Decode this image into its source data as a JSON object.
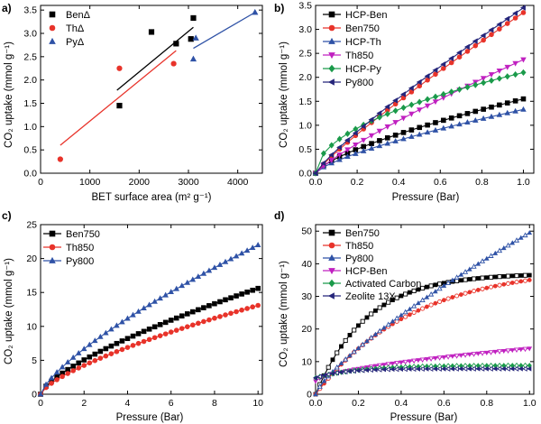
{
  "chart_data": [
    {
      "id": "a",
      "type": "scatter",
      "panel_label": "a)",
      "xlabel": "BET surface area (m² g⁻¹)",
      "ylabel": "CO₂ uptake (mmol g⁻¹)",
      "xlim": [
        0,
        4500
      ],
      "ylim": [
        0,
        3.6
      ],
      "xticks": [
        0,
        1000,
        2000,
        3000,
        4000
      ],
      "yticks": [
        0.0,
        0.5,
        1.0,
        1.5,
        2.0,
        2.5,
        3.0,
        3.5
      ],
      "xtick_labels": [
        "0",
        "1000",
        "2000",
        "3000",
        "4000"
      ],
      "ytick_labels": [
        "0.0",
        "0.5",
        "1.0",
        "1.5",
        "2.0",
        "2.5",
        "3.0",
        "3.5"
      ],
      "series": [
        {
          "name": "BenΔ",
          "color": "#000000",
          "marker": "square",
          "x": [
            1600,
            2250,
            2750,
            3050,
            3100
          ],
          "y": [
            1.45,
            3.03,
            2.78,
            2.88,
            3.33
          ],
          "fit": [
            [
              1550,
              1.78
            ],
            [
              3100,
              3.13
            ]
          ]
        },
        {
          "name": "ThΔ",
          "color": "#e8332a",
          "marker": "circle",
          "x": [
            400,
            1600,
            2700
          ],
          "y": [
            0.3,
            2.25,
            2.35
          ],
          "fit": [
            [
              400,
              0.6
            ],
            [
              2750,
              2.63
            ]
          ]
        },
        {
          "name": "PyΔ",
          "color": "#2f52a6",
          "marker": "triangle",
          "x": [
            3100,
            3150,
            4350
          ],
          "y": [
            2.45,
            2.9,
            3.45
          ],
          "fit": [
            [
              3100,
              2.68
            ],
            [
              4350,
              3.45
            ]
          ]
        }
      ]
    },
    {
      "id": "b",
      "type": "line",
      "panel_label": "b)",
      "xlabel": "Pressure (Bar)",
      "ylabel": "CO₂ uptake (mmol g⁻¹)",
      "xlim": [
        0,
        1.05
      ],
      "ylim": [
        0,
        3.5
      ],
      "xticks": [
        0,
        0.2,
        0.4,
        0.6,
        0.8,
        1.0
      ],
      "yticks": [
        0.0,
        0.5,
        1.0,
        1.5,
        2.0,
        2.5,
        3.0,
        3.5
      ],
      "xtick_labels": [
        "0.0",
        "0.2",
        "0.4",
        "0.6",
        "0.8",
        "1.0"
      ],
      "ytick_labels": [
        "0.0",
        "0.5",
        "1.0",
        "1.5",
        "2.0",
        "2.5",
        "3.0",
        "3.5"
      ],
      "series": [
        {
          "name": "HCP-Ben",
          "color": "#000000",
          "marker": "square",
          "y_end": 1.55,
          "exponent": 0.7
        },
        {
          "name": "Ben750",
          "color": "#e8332a",
          "marker": "circle",
          "y_end": 3.35,
          "exponent": 0.88
        },
        {
          "name": "HCP-Th",
          "color": "#2f52a6",
          "marker": "triangle",
          "y_end": 1.33,
          "exponent": 0.72
        },
        {
          "name": "Th850",
          "color": "#c020c0",
          "marker": "triangle-down",
          "y_end": 2.37,
          "exponent": 0.84
        },
        {
          "name": "HCP-Py",
          "color": "#1a9a4a",
          "marker": "diamond",
          "y_end": 2.1,
          "exponent": 0.5
        },
        {
          "name": "Py800",
          "color": "#25257a",
          "marker": "triangle-left",
          "y_end": 3.45,
          "exponent": 0.86
        }
      ]
    },
    {
      "id": "c",
      "type": "line",
      "panel_label": "c)",
      "xlabel": "Pressure (Bar)",
      "ylabel": "CO₂ uptake (mmol g⁻¹)",
      "xlim": [
        0,
        10.2
      ],
      "ylim": [
        0,
        25
      ],
      "xticks": [
        0,
        2,
        4,
        6,
        8,
        10
      ],
      "yticks": [
        0,
        5,
        10,
        15,
        20,
        25
      ],
      "xtick_labels": [
        "0",
        "2",
        "4",
        "6",
        "8",
        "10"
      ],
      "ytick_labels": [
        "0",
        "5",
        "10",
        "15",
        "20",
        "25"
      ],
      "series": [
        {
          "name": "Ben750",
          "color": "#000000",
          "marker": "square",
          "y_end": 15.6,
          "exponent": 0.7
        },
        {
          "name": "Th850",
          "color": "#e8332a",
          "marker": "circle",
          "y_end": 13.1,
          "exponent": 0.7
        },
        {
          "name": "Py800",
          "color": "#2f52a6",
          "marker": "triangle",
          "y_end": 22.0,
          "exponent": 0.74
        }
      ]
    },
    {
      "id": "d",
      "type": "line",
      "panel_label": "d)",
      "xlabel": "Pressure (Bar)",
      "ylabel": "CO₂ uptake (mmol g⁻¹)",
      "xlim": [
        0,
        1.02
      ],
      "ylim": [
        0,
        52
      ],
      "xticks": [
        0,
        0.2,
        0.4,
        0.6,
        0.8,
        1.0
      ],
      "yticks": [
        0,
        10,
        20,
        30,
        40,
        50
      ],
      "xtick_labels": [
        "0.0",
        "0.2",
        "0.4",
        "0.6",
        "0.8",
        "1.0"
      ],
      "ytick_labels": [
        "0",
        "10",
        "20",
        "30",
        "40",
        "50"
      ],
      "series": [
        {
          "name": "Ben750",
          "color": "#000000",
          "marker": "square",
          "y0": 0,
          "y_end": 36.5,
          "saturating": true,
          "k": 4.2
        },
        {
          "name": "Th850",
          "color": "#e8332a",
          "marker": "circle",
          "y0": 0,
          "y_end": 35.0,
          "saturating": true,
          "k": 2.2
        },
        {
          "name": "Py800",
          "color": "#2f52a6",
          "marker": "triangle",
          "y0": 0,
          "y_end": 49.5,
          "saturating": false,
          "exponent": 0.78
        },
        {
          "name": "HCP-Ben",
          "color": "#c020c0",
          "marker": "triangle-down",
          "y0": 4,
          "y_end": 14.0,
          "saturating": false,
          "exponent": 0.6
        },
        {
          "name": "Activated Carbon",
          "color": "#1a9a4a",
          "marker": "diamond",
          "y0": 5,
          "y_end": 8.8,
          "saturating": true,
          "k": 5
        },
        {
          "name": "Zeolite 13X",
          "color": "#25257a",
          "marker": "triangle-left",
          "y0": 5,
          "y_end": 7.8,
          "saturating": true,
          "k": 8
        }
      ]
    }
  ]
}
